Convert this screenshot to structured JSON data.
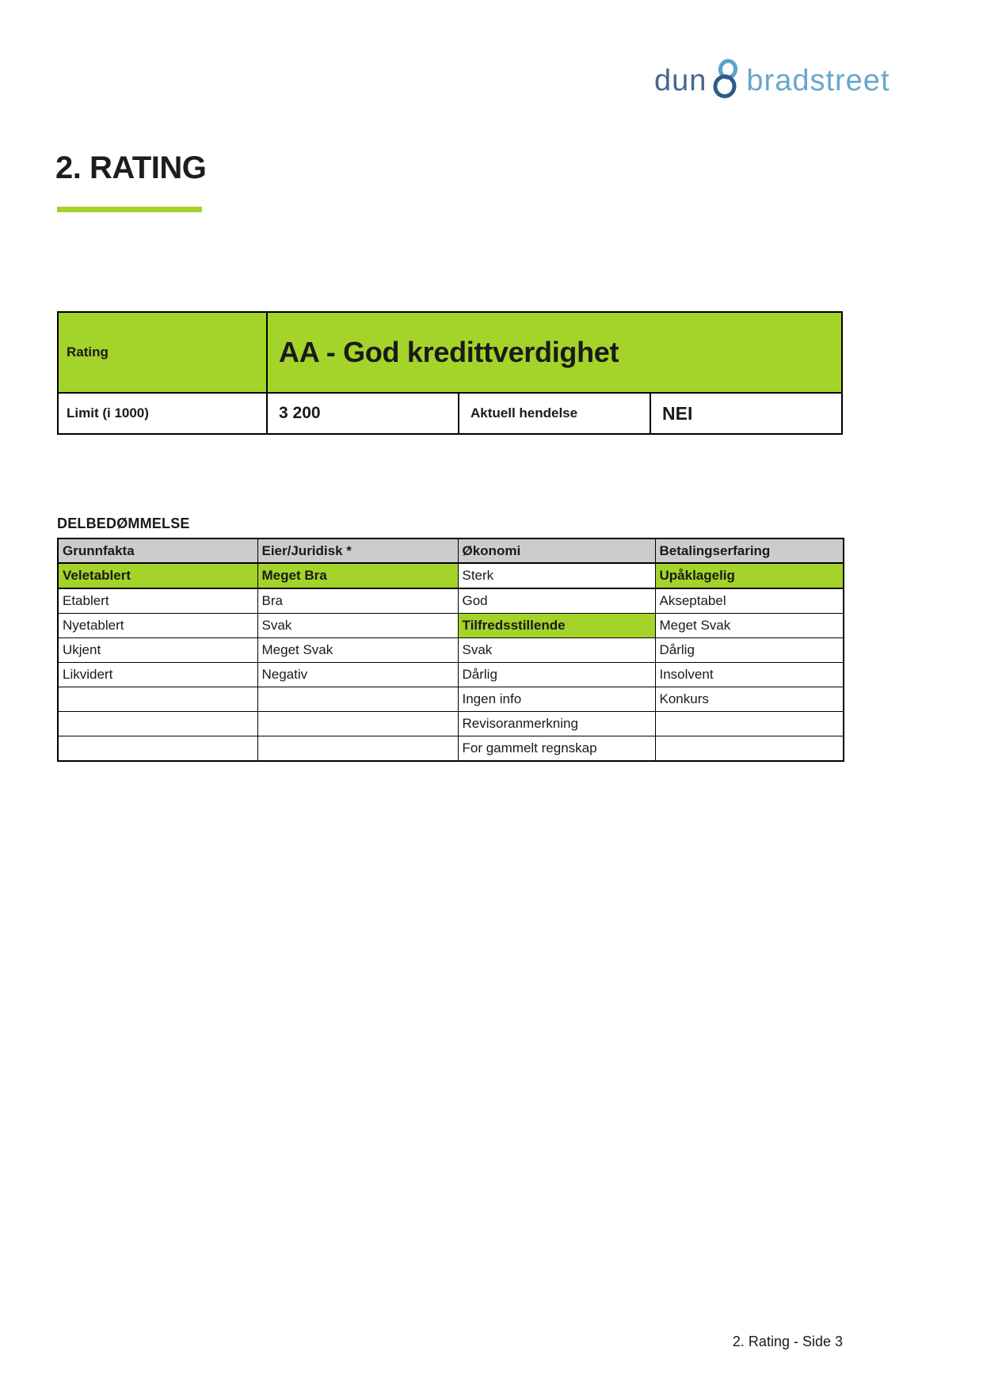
{
  "page": {
    "heading": "2. RATING",
    "footer": "2. Rating - Side 3"
  },
  "logo": {
    "word1": "dun",
    "ampersand": "&",
    "word2": "bradstreet"
  },
  "rating_box": {
    "rating_label": "Rating",
    "rating_value": "AA - God kredittverdighet",
    "limit_label": "Limit (i 1000)",
    "limit_value": "3 200",
    "event_label": "Aktuell hendelse",
    "event_value": "NEI"
  },
  "delbedommelse": {
    "heading": "DELBEDØMMELSE",
    "columns": [
      "Grunnfakta",
      "Eier/Juridisk *",
      "Økonomi",
      "Betalingserfaring"
    ],
    "rows": [
      [
        {
          "text": "Veletablert",
          "highlight": true
        },
        {
          "text": "Meget Bra",
          "highlight": true
        },
        {
          "text": "Sterk",
          "highlight": false
        },
        {
          "text": "Upåklagelig",
          "highlight": true
        }
      ],
      [
        {
          "text": "Etablert",
          "highlight": false
        },
        {
          "text": "Bra",
          "highlight": false
        },
        {
          "text": "God",
          "highlight": false
        },
        {
          "text": "Akseptabel",
          "highlight": false
        }
      ],
      [
        {
          "text": "Nyetablert",
          "highlight": false
        },
        {
          "text": "Svak",
          "highlight": false
        },
        {
          "text": "Tilfredsstillende",
          "highlight": true
        },
        {
          "text": "Meget Svak",
          "highlight": false
        }
      ],
      [
        {
          "text": "Ukjent",
          "highlight": false
        },
        {
          "text": "Meget Svak",
          "highlight": false
        },
        {
          "text": "Svak",
          "highlight": false
        },
        {
          "text": "Dårlig",
          "highlight": false
        }
      ],
      [
        {
          "text": "Likvidert",
          "highlight": false
        },
        {
          "text": "Negativ",
          "highlight": false
        },
        {
          "text": "Dårlig",
          "highlight": false
        },
        {
          "text": "Insolvent",
          "highlight": false
        }
      ],
      [
        {
          "text": "",
          "highlight": false
        },
        {
          "text": "",
          "highlight": false
        },
        {
          "text": "Ingen info",
          "highlight": false
        },
        {
          "text": "Konkurs",
          "highlight": false
        }
      ],
      [
        {
          "text": "",
          "highlight": false
        },
        {
          "text": "",
          "highlight": false
        },
        {
          "text": "Revisoranmerkning",
          "highlight": false
        },
        {
          "text": "",
          "highlight": false
        }
      ],
      [
        {
          "text": "",
          "highlight": false
        },
        {
          "text": "",
          "highlight": false
        },
        {
          "text": "For gammelt regnskap",
          "highlight": false
        },
        {
          "text": "",
          "highlight": false
        }
      ]
    ]
  },
  "colors": {
    "green": "#a4d32a",
    "header_gray": "#cccccc",
    "text": "#1a1a1a",
    "logo_dun": "#44688d",
    "logo_bradstreet": "#69a7cc",
    "logo_amp_dark": "#2c5c87",
    "logo_amp_light": "#5ba2c9"
  }
}
